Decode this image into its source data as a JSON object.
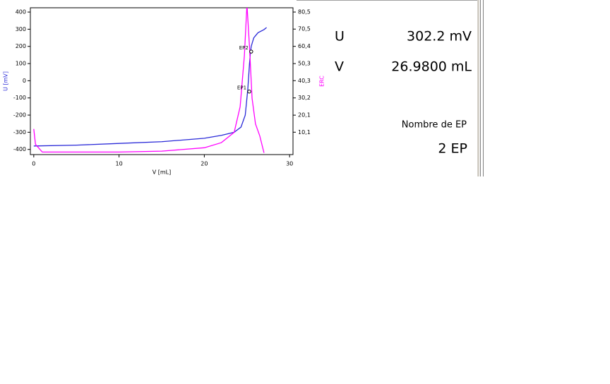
{
  "chart_data": {
    "type": "line",
    "x_label": "V [mL]",
    "y_label": "U [mV]",
    "y2_label": "ERC",
    "xlim": [
      -0.4,
      30.4
    ],
    "xticks": [
      0,
      10,
      20,
      30
    ],
    "ylim": [
      -430,
      425
    ],
    "yticks": [
      -400,
      -300,
      -200,
      -100,
      0,
      100,
      200,
      300,
      400
    ],
    "y2lim": [
      -3,
      83
    ],
    "y2ticks": [
      {
        "value": 10.1,
        "label": "10,1"
      },
      {
        "value": 20.1,
        "label": "20,1"
      },
      {
        "value": 30.2,
        "label": "30,2"
      },
      {
        "value": 40.3,
        "label": "40,3"
      },
      {
        "value": 50.3,
        "label": "50,3"
      },
      {
        "value": 60.4,
        "label": "60,4"
      },
      {
        "value": 70.5,
        "label": "70,5"
      },
      {
        "value": 80.5,
        "label": "80,5"
      }
    ],
    "series": [
      {
        "color": "#2a2ad8",
        "x": [
          0,
          5,
          10,
          15,
          20,
          22,
          23.5,
          24.3,
          24.8,
          25.0,
          25.1,
          25.3,
          25.4,
          25.5,
          25.8,
          26.3,
          27.0,
          27.3
        ],
        "values": [
          -380,
          -375,
          -365,
          -355,
          -335,
          -318,
          -300,
          -270,
          -200,
          -100,
          -50,
          100,
          160,
          200,
          250,
          280,
          298,
          310
        ]
      },
      {
        "color": "#ff00ff",
        "axis": "y2",
        "x": [
          0,
          0.2,
          1,
          5,
          10,
          15,
          20,
          22,
          23.5,
          24.2,
          24.7,
          25.0,
          25.3,
          25.6,
          26.0,
          26.5,
          27.0
        ],
        "values": [
          12,
          3,
          -1.5,
          -1.5,
          -1.5,
          -1,
          1,
          4,
          10,
          25,
          55,
          85,
          60,
          30,
          15,
          8,
          -2
        ]
      }
    ],
    "annotations": [
      {
        "label": "EP1",
        "x": 25.27,
        "y": -63
      },
      {
        "label": "EP2",
        "x": 25.5,
        "y": 170
      }
    ]
  },
  "panel": {
    "rows": [
      {
        "label": "U",
        "value": "302.2 mV"
      },
      {
        "label": "V",
        "value": "26.9800 mL"
      }
    ],
    "ep_label": "Nombre de EP",
    "ep_value": "2 EP"
  }
}
